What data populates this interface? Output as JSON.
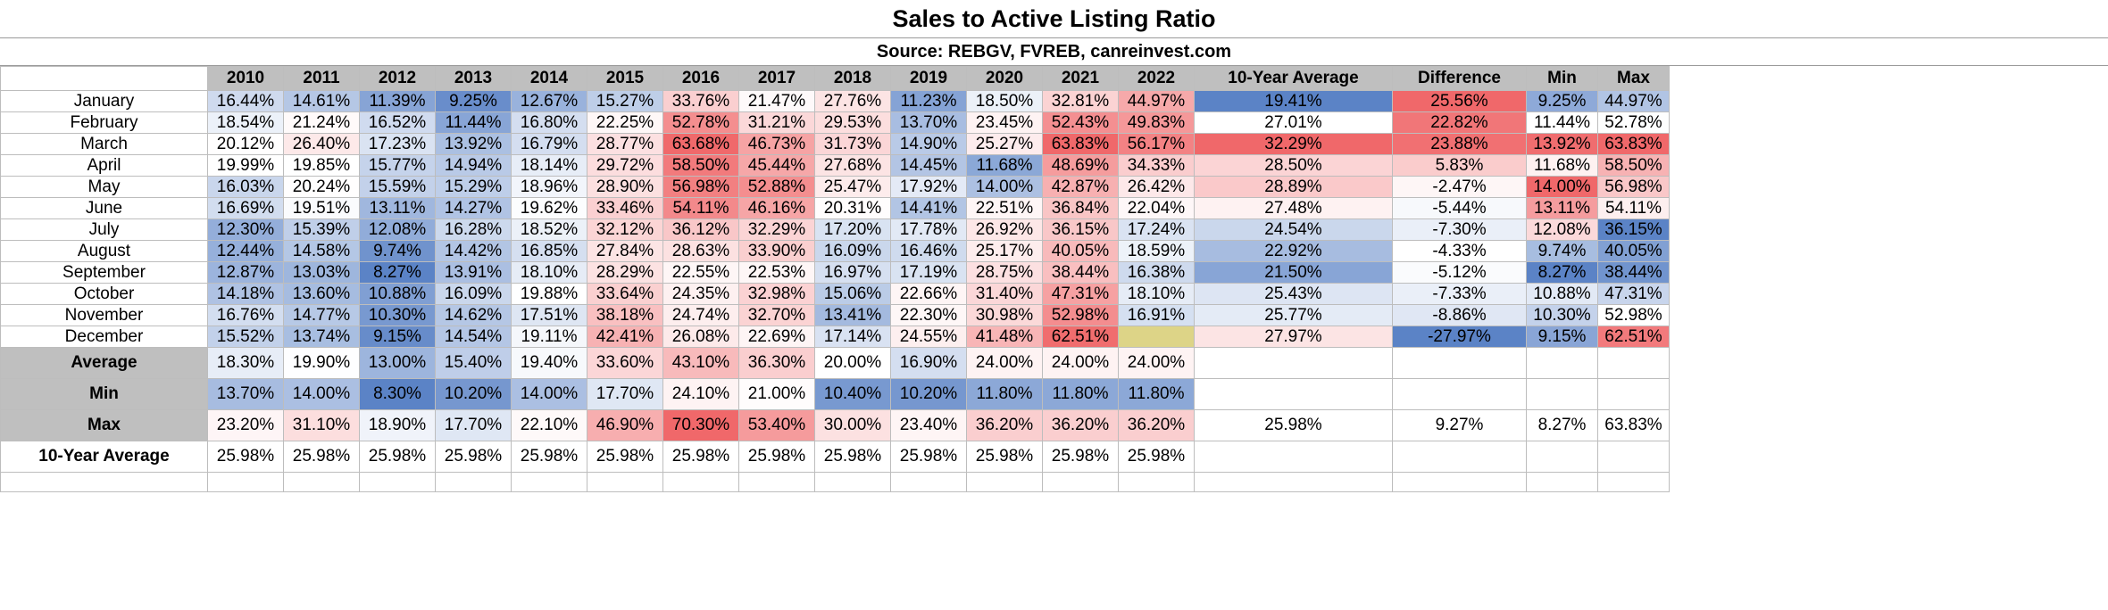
{
  "title": "Sales to Active Listing Ratio",
  "source": "Source: REBGV, FVREB, canreinvest.com",
  "chart_data": {
    "type": "table",
    "title": "Sales to Active Listing Ratio",
    "subtitle": "Source: REBGV, FVREB, canreinvest.com",
    "columns": [
      "2010",
      "2011",
      "2012",
      "2013",
      "2014",
      "2015",
      "2016",
      "2017",
      "2018",
      "2019",
      "2020",
      "2021",
      "2022",
      "10-Year Average",
      "Difference",
      "Min",
      "Max"
    ],
    "months": [
      "January",
      "February",
      "March",
      "April",
      "May",
      "June",
      "July",
      "August",
      "September",
      "October",
      "November",
      "December"
    ],
    "rows": [
      [
        "16.44%",
        "14.61%",
        "11.39%",
        "9.25%",
        "12.67%",
        "15.27%",
        "33.76%",
        "21.47%",
        "27.76%",
        "11.23%",
        "18.50%",
        "32.81%",
        "44.97%",
        "19.41%",
        "25.56%",
        "9.25%",
        "44.97%"
      ],
      [
        "18.54%",
        "21.24%",
        "16.52%",
        "11.44%",
        "16.80%",
        "22.25%",
        "52.78%",
        "31.21%",
        "29.53%",
        "13.70%",
        "23.45%",
        "52.43%",
        "49.83%",
        "27.01%",
        "22.82%",
        "11.44%",
        "52.78%"
      ],
      [
        "20.12%",
        "26.40%",
        "17.23%",
        "13.92%",
        "16.79%",
        "28.77%",
        "63.68%",
        "46.73%",
        "31.73%",
        "14.90%",
        "25.27%",
        "63.83%",
        "56.17%",
        "32.29%",
        "23.88%",
        "13.92%",
        "63.83%"
      ],
      [
        "19.99%",
        "19.85%",
        "15.77%",
        "14.94%",
        "18.14%",
        "29.72%",
        "58.50%",
        "45.44%",
        "27.68%",
        "14.45%",
        "11.68%",
        "48.69%",
        "34.33%",
        "28.50%",
        "5.83%",
        "11.68%",
        "58.50%"
      ],
      [
        "16.03%",
        "20.24%",
        "15.59%",
        "15.29%",
        "18.96%",
        "28.90%",
        "56.98%",
        "52.88%",
        "25.47%",
        "17.92%",
        "14.00%",
        "42.87%",
        "26.42%",
        "28.89%",
        "-2.47%",
        "14.00%",
        "56.98%"
      ],
      [
        "16.69%",
        "19.51%",
        "13.11%",
        "14.27%",
        "19.62%",
        "33.46%",
        "54.11%",
        "46.16%",
        "20.31%",
        "14.41%",
        "22.51%",
        "36.84%",
        "22.04%",
        "27.48%",
        "-5.44%",
        "13.11%",
        "54.11%"
      ],
      [
        "12.30%",
        "15.39%",
        "12.08%",
        "16.28%",
        "18.52%",
        "32.12%",
        "36.12%",
        "32.29%",
        "17.20%",
        "17.78%",
        "26.92%",
        "36.15%",
        "17.24%",
        "24.54%",
        "-7.30%",
        "12.08%",
        "36.15%"
      ],
      [
        "12.44%",
        "14.58%",
        "9.74%",
        "14.42%",
        "16.85%",
        "27.84%",
        "28.63%",
        "33.90%",
        "16.09%",
        "16.46%",
        "25.17%",
        "40.05%",
        "18.59%",
        "22.92%",
        "-4.33%",
        "9.74%",
        "40.05%"
      ],
      [
        "12.87%",
        "13.03%",
        "8.27%",
        "13.91%",
        "18.10%",
        "28.29%",
        "22.55%",
        "22.53%",
        "16.97%",
        "17.19%",
        "28.75%",
        "38.44%",
        "16.38%",
        "21.50%",
        "-5.12%",
        "8.27%",
        "38.44%"
      ],
      [
        "14.18%",
        "13.60%",
        "10.88%",
        "16.09%",
        "19.88%",
        "33.64%",
        "24.35%",
        "32.98%",
        "15.06%",
        "22.66%",
        "31.40%",
        "47.31%",
        "18.10%",
        "25.43%",
        "-7.33%",
        "10.88%",
        "47.31%"
      ],
      [
        "16.76%",
        "14.77%",
        "10.30%",
        "14.62%",
        "17.51%",
        "38.18%",
        "24.74%",
        "32.70%",
        "13.41%",
        "22.30%",
        "30.98%",
        "52.98%",
        "16.91%",
        "25.77%",
        "-8.86%",
        "10.30%",
        "52.98%"
      ],
      [
        "15.52%",
        "13.74%",
        "9.15%",
        "14.54%",
        "19.11%",
        "42.41%",
        "26.08%",
        "22.69%",
        "17.14%",
        "24.55%",
        "41.48%",
        "62.51%",
        "",
        "27.97%",
        "-27.97%",
        "9.15%",
        "62.51%"
      ]
    ],
    "summary_labels": [
      "Average",
      "Min",
      "Max",
      "10-Year Average"
    ],
    "summary_rows": [
      [
        "18.30%",
        "19.90%",
        "13.00%",
        "15.40%",
        "19.40%",
        "33.60%",
        "43.10%",
        "36.30%",
        "20.00%",
        "16.90%",
        "24.00%",
        "24.00%",
        "24.00%",
        "",
        "",
        "",
        ""
      ],
      [
        "13.70%",
        "14.00%",
        "8.30%",
        "10.20%",
        "14.00%",
        "17.70%",
        "24.10%",
        "21.00%",
        "10.40%",
        "10.20%",
        "11.80%",
        "11.80%",
        "11.80%",
        "",
        "",
        "",
        ""
      ],
      [
        "23.20%",
        "31.10%",
        "18.90%",
        "17.70%",
        "22.10%",
        "46.90%",
        "70.30%",
        "53.40%",
        "30.00%",
        "23.40%",
        "36.20%",
        "36.20%",
        "36.20%",
        "25.98%",
        "9.27%",
        "8.27%",
        "63.83%"
      ],
      [
        "25.98%",
        "25.98%",
        "25.98%",
        "25.98%",
        "25.98%",
        "25.98%",
        "25.98%",
        "25.98%",
        "25.98%",
        "25.98%",
        "25.98%",
        "25.98%",
        "25.98%",
        "",
        "",
        "",
        ""
      ]
    ],
    "colors": {
      "low": "#5b83c6",
      "mid": "#ffffff",
      "high": "#f0686a",
      "header_bg": "#bfbfbf",
      "missing": "#ddd487"
    }
  }
}
